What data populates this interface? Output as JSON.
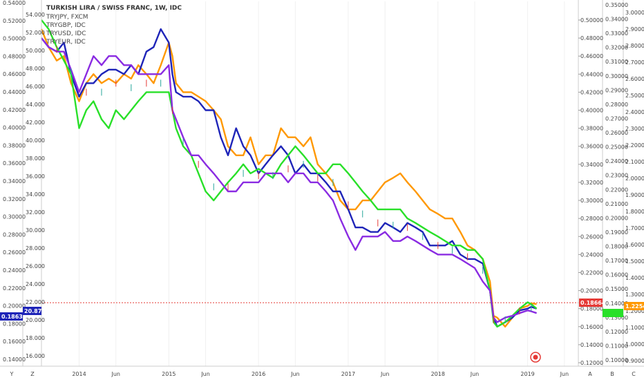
{
  "chart_data": {
    "type": "line",
    "title": "TURKISH LIRA / SWISS FRANC, 1W, IDC",
    "legend": [
      {
        "name": "TRYJPY, FXCM",
        "color": "#333333"
      },
      {
        "name": "TRYGBP, IDC",
        "color": "#333333"
      },
      {
        "name": "TRYUSD, IDC",
        "color": "#333333"
      },
      {
        "name": "TRYEUR, IDC",
        "color": "#333333"
      }
    ],
    "x_ticks": [
      "2014",
      "Jun",
      "2015",
      "Jun",
      "2016",
      "Jun",
      "2017",
      "Jun",
      "2018",
      "Jun",
      "2019",
      "Jun"
    ],
    "axes": {
      "left_outer": {
        "ticks": [
          "0.54000",
          "0.52000",
          "0.50000",
          "0.48000",
          "0.46000",
          "0.44000",
          "0.42000",
          "0.40000",
          "0.38000",
          "0.36000",
          "0.34000",
          "0.32000",
          "0.30000",
          "0.28000",
          "0.26000",
          "0.24000",
          "0.22000",
          "0.20000",
          "0.18000",
          "0.16000",
          "0.14000"
        ],
        "range": [
          0.14,
          0.54
        ]
      },
      "left_inner": {
        "ticks": [
          "54.000",
          "52.000",
          "50.000",
          "48.000",
          "46.000",
          "44.000",
          "42.000",
          "40.000",
          "38.000",
          "36.000",
          "34.000",
          "32.000",
          "30.000",
          "28.000",
          "26.000",
          "24.000",
          "22.000",
          "20.000",
          "18.000",
          "16.000"
        ],
        "range": [
          16,
          54
        ]
      },
      "right_inner": {
        "ticks": [
          "0.50000",
          "0.48000",
          "0.46000",
          "0.44000",
          "0.42000",
          "0.40000",
          "0.38000",
          "0.36000",
          "0.34000",
          "0.32000",
          "0.30000",
          "0.28000",
          "0.26000",
          "0.24000",
          "0.22000",
          "0.20000",
          "0.18000",
          "0.16000",
          "0.14000",
          "0.12000"
        ],
        "range": [
          0.12,
          0.5
        ]
      },
      "right_mid": {
        "ticks": [
          "0.35000",
          "0.34000",
          "0.33000",
          "0.32000",
          "0.31000",
          "0.30000",
          "0.29000",
          "0.28000",
          "0.27000",
          "0.26000",
          "0.25000",
          "0.24000",
          "0.23000",
          "0.22000",
          "0.21000",
          "0.20000",
          "0.19000",
          "0.18000",
          "0.17000",
          "0.16000",
          "0.15000",
          "0.14000",
          "0.13000",
          "0.12000",
          "0.11000",
          "0.10000"
        ],
        "range": [
          0.1,
          0.35
        ]
      },
      "right_outer": {
        "ticks": [
          "3.0000",
          "2.9000",
          "2.8000",
          "2.7000",
          "2.6000",
          "2.5000",
          "2.4000",
          "2.3000",
          "2.2000",
          "2.1000",
          "2.0000",
          "1.9000",
          "1.8000",
          "1.7000",
          "1.6000",
          "1.5000",
          "1.4000",
          "1.3000",
          "1.2000",
          "1.1000",
          "1.0000",
          "0.9000"
        ],
        "range": [
          0.9,
          3.0
        ]
      }
    },
    "price_labels": {
      "left_outer": "0.18633",
      "left_inner": "20.877",
      "right_inner": "0.18664",
      "right_outer": "1.2254"
    },
    "horizontal_line": {
      "value": 0.1866,
      "axis": "right_inner",
      "color": "#e53935"
    },
    "axis_buttons": {
      "left_outer": "Y",
      "left_inner": "Z",
      "right_inner": "A",
      "right_mid": "B",
      "right_outer": "C"
    },
    "x": [
      2013.58,
      2013.66,
      2013.75,
      2013.83,
      2013.91,
      2014.0,
      2014.08,
      2014.16,
      2014.25,
      2014.33,
      2014.41,
      2014.5,
      2014.58,
      2014.66,
      2014.75,
      2014.83,
      2014.91,
      2015.0,
      2015.04,
      2015.08,
      2015.16,
      2015.25,
      2015.33,
      2015.41,
      2015.5,
      2015.58,
      2015.66,
      2015.75,
      2015.83,
      2015.91,
      2016.0,
      2016.08,
      2016.16,
      2016.25,
      2016.33,
      2016.41,
      2016.5,
      2016.58,
      2016.66,
      2016.75,
      2016.83,
      2016.91,
      2017.0,
      2017.08,
      2017.16,
      2017.25,
      2017.33,
      2017.41,
      2017.5,
      2017.58,
      2017.66,
      2017.75,
      2017.83,
      2017.91,
      2018.0,
      2018.08,
      2018.16,
      2018.25,
      2018.33,
      2018.41,
      2018.5,
      2018.58,
      2018.62,
      2018.66,
      2018.75,
      2018.83,
      2018.91,
      2019.0,
      2019.04,
      2019.1
    ],
    "series": [
      {
        "color": "#ff9800",
        "axis": "right_inner",
        "values": [
          0.49,
          0.47,
          0.455,
          0.46,
          0.43,
          0.41,
          0.43,
          0.44,
          0.43,
          0.435,
          0.43,
          0.44,
          0.435,
          0.45,
          0.44,
          0.43,
          0.45,
          0.475,
          0.46,
          0.43,
          0.42,
          0.42,
          0.415,
          0.41,
          0.4,
          0.39,
          0.36,
          0.35,
          0.35,
          0.37,
          0.34,
          0.35,
          0.35,
          0.38,
          0.37,
          0.37,
          0.36,
          0.37,
          0.34,
          0.33,
          0.32,
          0.3,
          0.29,
          0.29,
          0.3,
          0.3,
          0.31,
          0.32,
          0.325,
          0.33,
          0.32,
          0.31,
          0.3,
          0.29,
          0.285,
          0.28,
          0.28,
          0.265,
          0.25,
          0.245,
          0.235,
          0.21,
          0.172,
          0.17,
          0.16,
          0.17,
          0.18,
          0.183,
          0.186,
          0.185
        ]
      },
      {
        "color": "#1e24b8",
        "axis": "right_inner",
        "values": [
          0.48,
          0.47,
          0.465,
          0.475,
          0.44,
          0.415,
          0.43,
          0.43,
          0.44,
          0.445,
          0.445,
          0.44,
          0.45,
          0.44,
          0.465,
          0.47,
          0.49,
          0.475,
          0.44,
          0.42,
          0.415,
          0.415,
          0.41,
          0.4,
          0.4,
          0.37,
          0.35,
          0.38,
          0.36,
          0.35,
          0.33,
          0.34,
          0.35,
          0.36,
          0.35,
          0.33,
          0.34,
          0.33,
          0.33,
          0.32,
          0.31,
          0.31,
          0.29,
          0.27,
          0.27,
          0.265,
          0.265,
          0.275,
          0.27,
          0.265,
          0.275,
          0.27,
          0.265,
          0.25,
          0.25,
          0.25,
          0.255,
          0.24,
          0.235,
          0.235,
          0.23,
          0.2,
          0.17,
          0.16,
          0.165,
          0.17,
          0.178,
          0.18,
          0.182,
          0.18
        ]
      },
      {
        "color": "#29e029",
        "axis": "right_inner",
        "values": [
          0.5,
          0.49,
          0.47,
          0.455,
          0.44,
          0.38,
          0.4,
          0.41,
          0.39,
          0.38,
          0.4,
          0.39,
          0.4,
          0.41,
          0.42,
          0.42,
          0.42,
          0.42,
          0.4,
          0.38,
          0.36,
          0.35,
          0.33,
          0.31,
          0.3,
          0.31,
          0.32,
          0.33,
          0.34,
          0.33,
          0.335,
          0.33,
          0.325,
          0.34,
          0.35,
          0.36,
          0.35,
          0.34,
          0.33,
          0.33,
          0.34,
          0.34,
          0.33,
          0.32,
          0.31,
          0.3,
          0.29,
          0.29,
          0.29,
          0.29,
          0.28,
          0.275,
          0.27,
          0.265,
          0.26,
          0.255,
          0.25,
          0.25,
          0.245,
          0.245,
          0.235,
          0.2,
          0.165,
          0.16,
          0.165,
          0.172,
          0.18,
          0.187,
          0.185,
          0.18
        ]
      },
      {
        "color": "#8a2be2",
        "axis": "right_inner",
        "values": [
          0.48,
          0.47,
          0.465,
          0.465,
          0.445,
          0.42,
          0.44,
          0.46,
          0.45,
          0.46,
          0.46,
          0.45,
          0.45,
          0.44,
          0.44,
          0.44,
          0.44,
          0.45,
          0.4,
          0.39,
          0.37,
          0.35,
          0.35,
          0.34,
          0.33,
          0.32,
          0.31,
          0.31,
          0.32,
          0.32,
          0.32,
          0.33,
          0.33,
          0.33,
          0.32,
          0.33,
          0.33,
          0.32,
          0.32,
          0.31,
          0.3,
          0.28,
          0.26,
          0.245,
          0.26,
          0.26,
          0.26,
          0.265,
          0.255,
          0.255,
          0.26,
          0.255,
          0.25,
          0.245,
          0.24,
          0.24,
          0.24,
          0.235,
          0.23,
          0.225,
          0.21,
          0.2,
          0.17,
          0.165,
          0.17,
          0.172,
          0.175,
          0.178,
          0.177,
          0.175
        ]
      }
    ]
  }
}
